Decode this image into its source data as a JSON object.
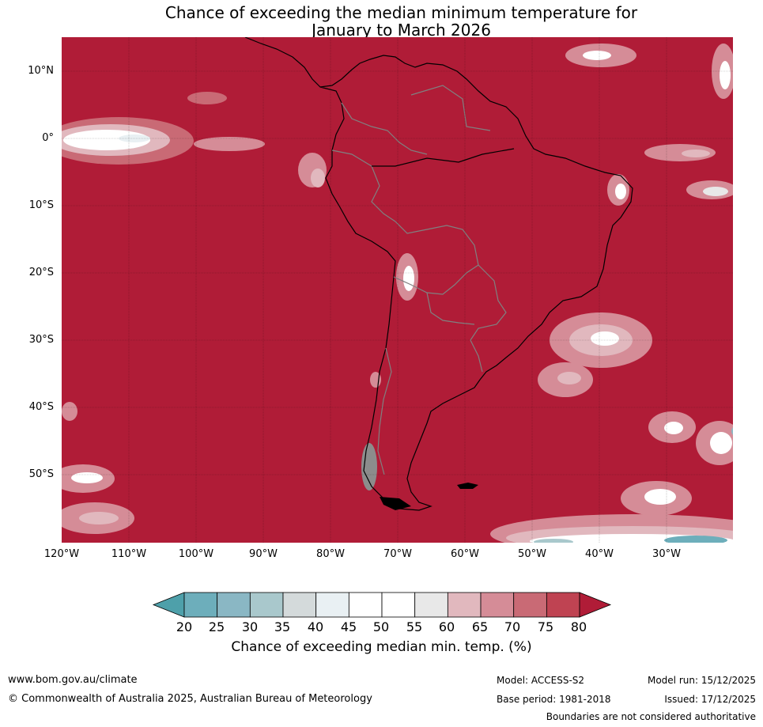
{
  "title": {
    "line1": "Chance of exceeding the median minimum temperature for",
    "line2": "January to March 2026"
  },
  "map": {
    "latitude_labels": [
      "10°N",
      "0°",
      "10°S",
      "20°S",
      "30°S",
      "40°S",
      "50°S"
    ],
    "longitude_labels": [
      "120°W",
      "110°W",
      "100°W",
      "90°W",
      "80°W",
      "70°W",
      "60°W",
      "50°W",
      "40°W",
      "30°W"
    ],
    "dominant_fill_color": "#b01c37"
  },
  "colorbar": {
    "ticks": [
      "20",
      "25",
      "30",
      "35",
      "40",
      "45",
      "50",
      "55",
      "60",
      "65",
      "70",
      "75",
      "80"
    ],
    "colors": [
      "#4ea0aa",
      "#6daebb",
      "#8ab7c4",
      "#a9c8cc",
      "#d4dadb",
      "#e9f0f3",
      "#ffffff",
      "#ffffff",
      "#e8e8e8",
      "#e1b8be",
      "#d58c97",
      "#c96a75",
      "#bf4352",
      "#b01c37"
    ],
    "label": "Chance of exceeding median min. temp. (%)"
  },
  "footer": {
    "website": "www.bom.gov.au/climate",
    "copyright": "© Commonwealth of Australia 2025, Australian Bureau of Meteorology",
    "model": "Model: ACCESS-S2",
    "base_period": "Base period: 1981-2018",
    "model_run": "Model run: 15/12/2025",
    "issued": "Issued: 17/12/2025",
    "disclaimer": "Boundaries are not considered authoritative"
  }
}
